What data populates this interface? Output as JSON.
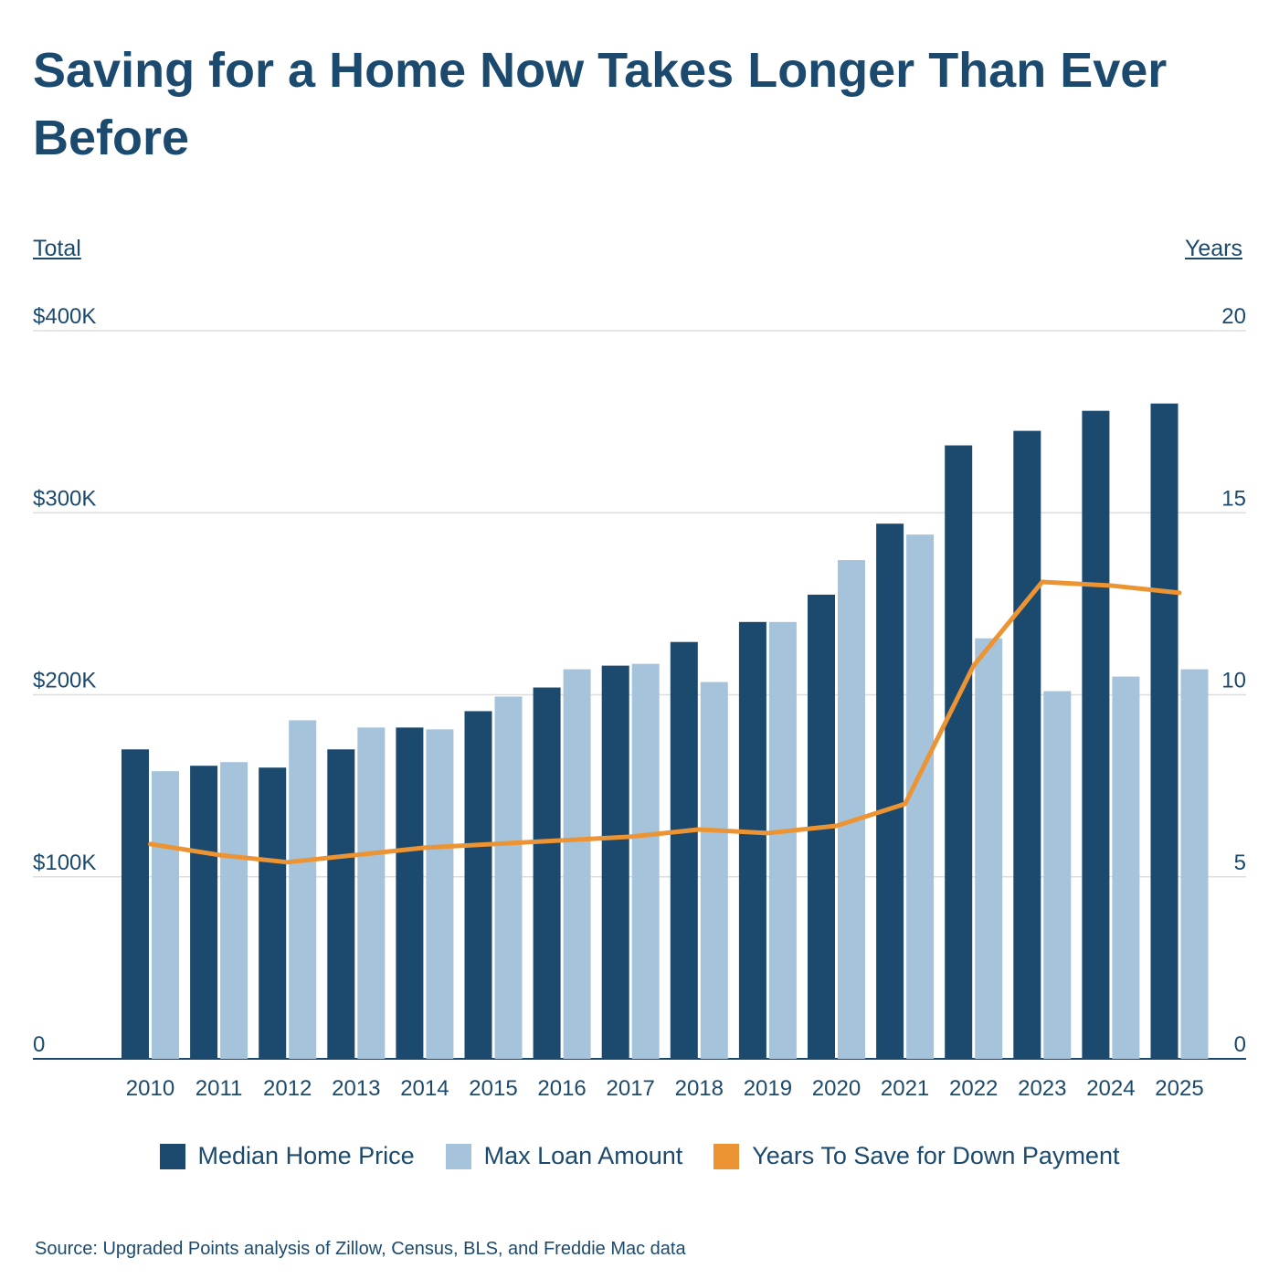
{
  "page": {
    "title": "Saving for a Home Now Takes Longer Than Ever Before",
    "source": "Source: Upgraded Points analysis of Zillow, Census, BLS, and Freddie Mac data"
  },
  "chart_data": {
    "type": "bar",
    "title": "Saving for a Home Now Takes Longer Than Ever Before",
    "ylabel_left": "Total",
    "ylabel_right": "Years",
    "ylim_left": [
      0,
      400000
    ],
    "ylim_right": [
      0,
      20
    ],
    "left_ticks": [
      {
        "value": 0,
        "label": "0"
      },
      {
        "value": 100000,
        "label": "$100K"
      },
      {
        "value": 200000,
        "label": "$200K"
      },
      {
        "value": 300000,
        "label": "$300K"
      },
      {
        "value": 400000,
        "label": "$400K"
      }
    ],
    "right_ticks": [
      {
        "value": 0,
        "label": "0"
      },
      {
        "value": 5,
        "label": "5"
      },
      {
        "value": 10,
        "label": "10"
      },
      {
        "value": 15,
        "label": "15"
      },
      {
        "value": 20,
        "label": "20"
      }
    ],
    "grid": true,
    "legend_position": "bottom",
    "categories": [
      "2010",
      "2011",
      "2012",
      "2013",
      "2014",
      "2015",
      "2016",
      "2017",
      "2018",
      "2019",
      "2020",
      "2021",
      "2022",
      "2023",
      "2024",
      "2025"
    ],
    "series": [
      {
        "name": "Median Home Price",
        "type": "bar",
        "axis": "left",
        "color": "#1c4a6e",
        "values": [
          170000,
          161000,
          160000,
          170000,
          182000,
          191000,
          204000,
          216000,
          229000,
          240000,
          255000,
          294000,
          337000,
          345000,
          356000,
          360000
        ]
      },
      {
        "name": "Max Loan Amount",
        "type": "bar",
        "axis": "left",
        "color": "#a6c3dc",
        "values": [
          158000,
          163000,
          186000,
          182000,
          181000,
          199000,
          214000,
          217000,
          207000,
          240000,
          274000,
          288000,
          231000,
          202000,
          210000,
          214000
        ]
      },
      {
        "name": "Years To Save for Down Payment",
        "type": "line",
        "axis": "right",
        "color": "#ec9433",
        "values": [
          5.9,
          5.6,
          5.4,
          5.6,
          5.8,
          5.9,
          6.0,
          6.1,
          6.3,
          6.2,
          6.4,
          7.0,
          10.8,
          13.1,
          13.0,
          12.8
        ]
      }
    ]
  }
}
